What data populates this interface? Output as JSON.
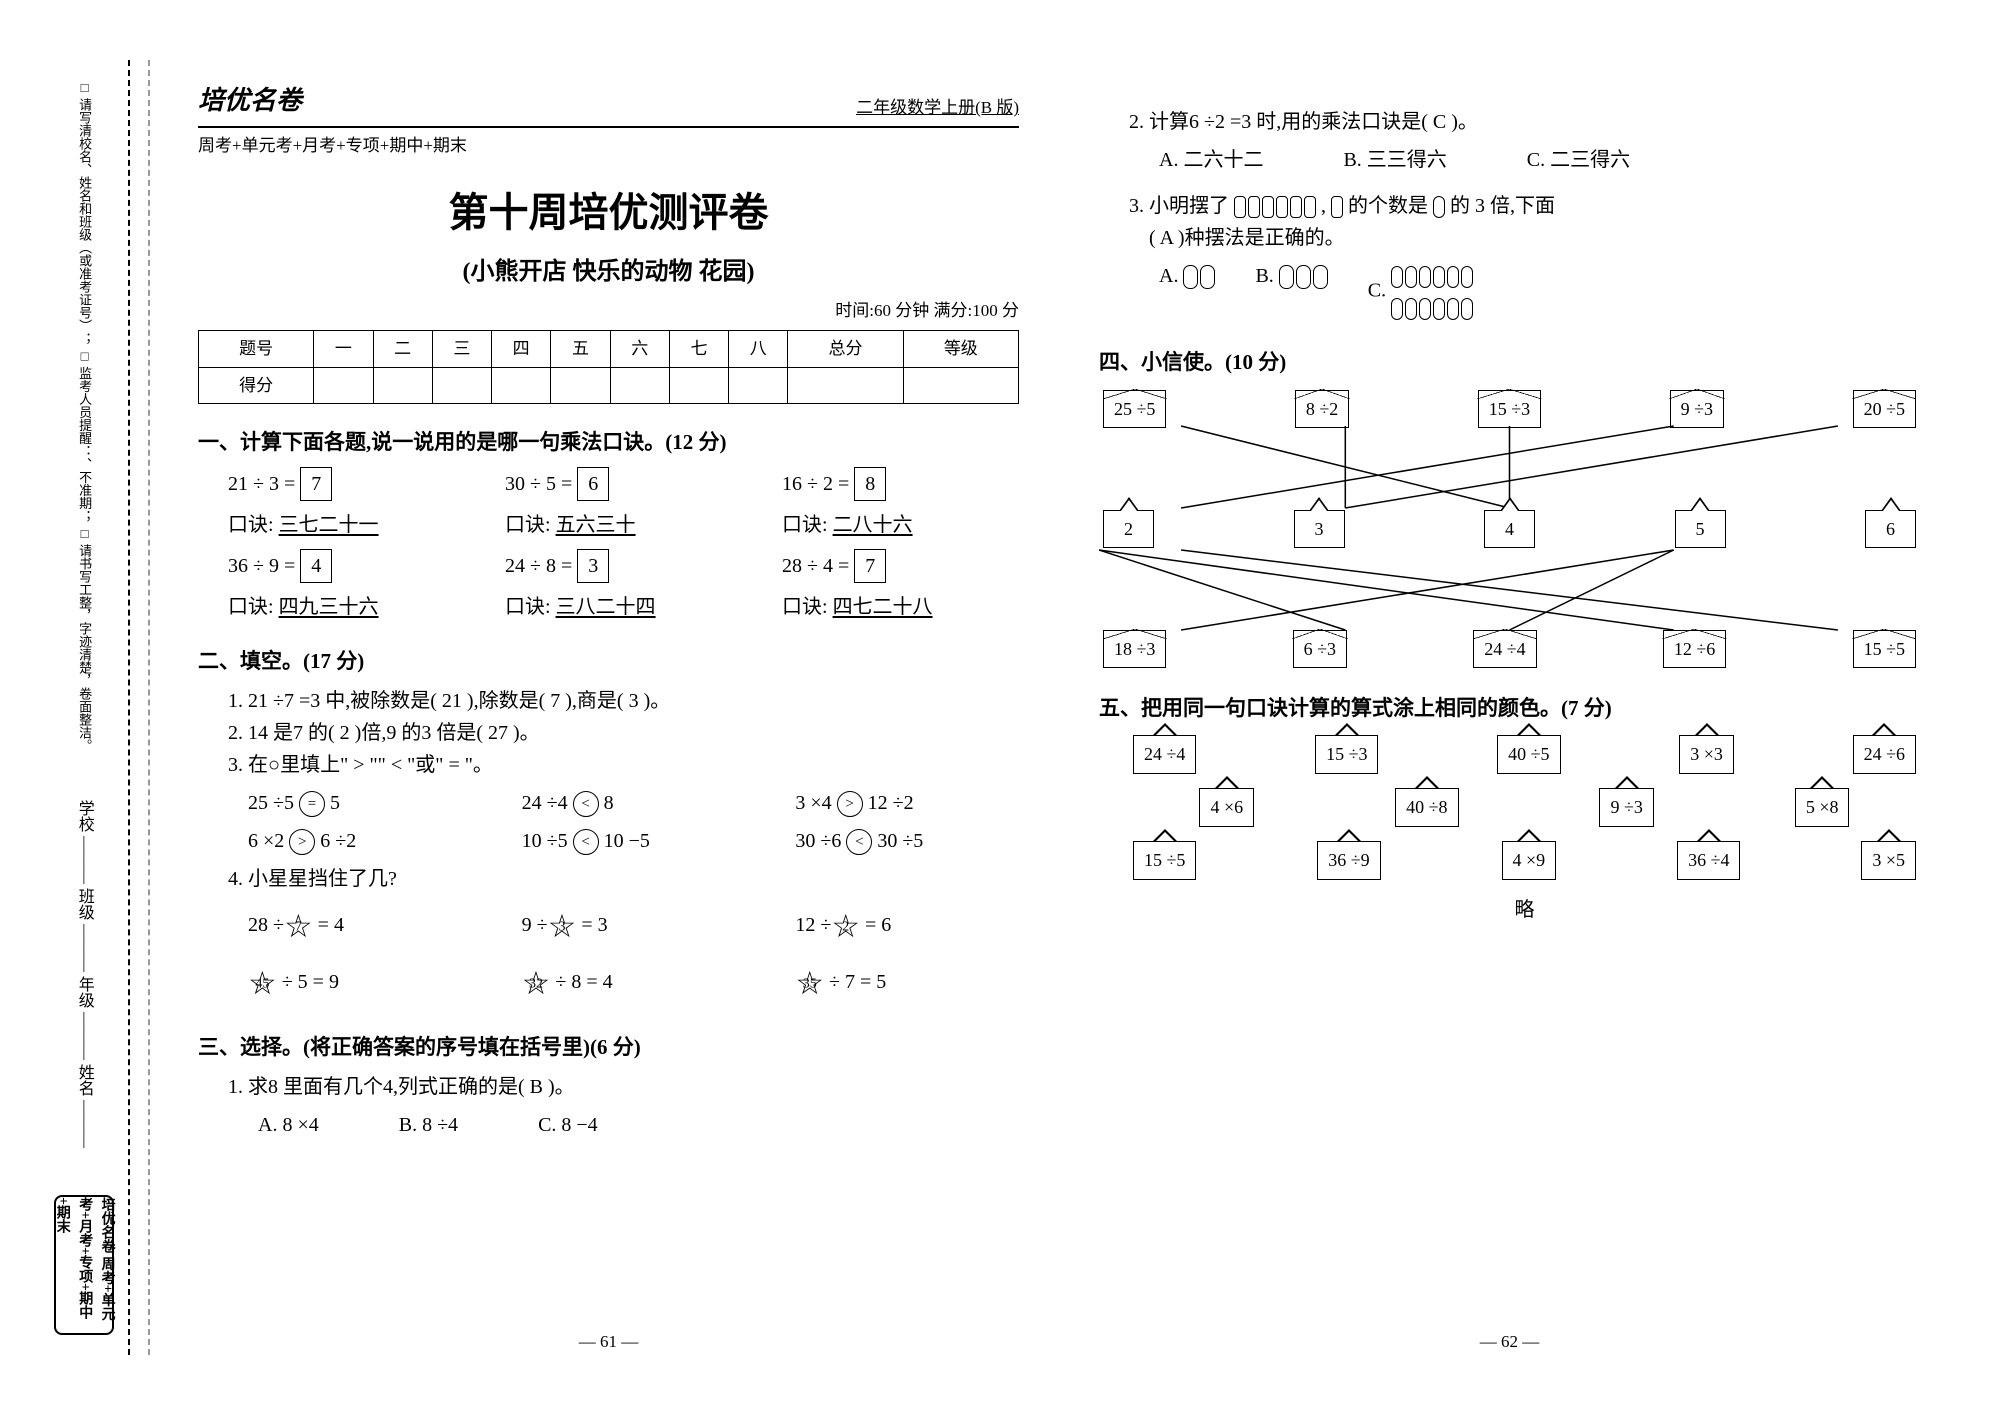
{
  "spine": {
    "instructions": "□ 请写清校名、姓名和班级（或准考证号）；\n□ 监考人员提醒：、不准期；\n□ 请书写工整，字迹清楚，卷面整洁。",
    "labels": "学校 ——— 班级 ——— 年级 ——— 姓名 ———",
    "logo": "培优名卷 周考+单元考+月考+专项+期中+期末"
  },
  "header": {
    "brand": "培优名卷",
    "grade": "二年级数学上册(B 版)",
    "line2": "周考+单元考+月考+专项+期中+期末"
  },
  "title": "第十周培优测评卷",
  "subtitle": "(小熊开店 快乐的动物 花园)",
  "timebar": "时间:60 分钟 满分:100 分",
  "score": {
    "cols": [
      "题号",
      "一",
      "二",
      "三",
      "四",
      "五",
      "六",
      "七",
      "八",
      "总分",
      "等级"
    ],
    "row2": "得分"
  },
  "s1": {
    "h": "一、计算下面各题,说一说用的是哪一句乘法口诀。(12 分)",
    "items": [
      {
        "eq": "21 ÷ 3 =",
        "ans": "7",
        "k": "口诀:",
        "kv": "三七二十一"
      },
      {
        "eq": "30 ÷ 5 =",
        "ans": "6",
        "k": "口诀:",
        "kv": "五六三十"
      },
      {
        "eq": "16 ÷ 2 =",
        "ans": "8",
        "k": "口诀:",
        "kv": "二八十六"
      },
      {
        "eq": "36 ÷ 9 =",
        "ans": "4",
        "k": "口诀:",
        "kv": "四九三十六"
      },
      {
        "eq": "24 ÷ 8 =",
        "ans": "3",
        "k": "口诀:",
        "kv": "三八二十四"
      },
      {
        "eq": "28 ÷ 4 =",
        "ans": "7",
        "k": "口诀:",
        "kv": "四七二十八"
      }
    ]
  },
  "s2": {
    "h": "二、填空。(17 分)",
    "q1a": "1. 21 ÷7 =3 中,被除数是(",
    "q1b": "21",
    "q1c": "),除数是(",
    "q1d": "7",
    "q1e": "),商是(",
    "q1f": "3",
    "q1g": ")。",
    "q2a": "2. 14 是7 的(",
    "q2b": "2",
    "q2c": ")倍,9 的3 倍是(",
    "q2d": "27",
    "q2e": ")。",
    "q3": "3. 在○里填上\" > \"\" < \"或\" = \"。",
    "cmp": [
      {
        "l": "25 ÷5",
        "s": "=",
        "r": "5"
      },
      {
        "l": "24 ÷4",
        "s": "<",
        "r": "8"
      },
      {
        "l": "3 ×4",
        "s": ">",
        "r": "12 ÷2"
      },
      {
        "l": "6 ×2",
        "s": ">",
        "r": "6 ÷2"
      },
      {
        "l": "10 ÷5",
        "s": "<",
        "r": "10 −5"
      },
      {
        "l": "30 ÷6",
        "s": "<",
        "r": "30 ÷5"
      }
    ],
    "q4": "4. 小星星挡住了几?",
    "stars": [
      {
        "pre": "28 ÷",
        "v": "7",
        "post": "= 4"
      },
      {
        "pre": "9 ÷",
        "v": "3",
        "post": "= 3"
      },
      {
        "pre": "12 ÷",
        "v": "2",
        "post": "= 6"
      },
      {
        "pre": "",
        "v": "45",
        "post": "÷ 5 = 9"
      },
      {
        "pre": "",
        "v": "32",
        "post": "÷ 8 = 4"
      },
      {
        "pre": "",
        "v": "35",
        "post": "÷ 7 = 5"
      }
    ]
  },
  "s3": {
    "h": "三、选择。(将正确答案的序号填在括号里)(6 分)",
    "q1": "1. 求8 里面有几个4,列式正确的是(",
    "q1ans": "B",
    "q1end": ")。",
    "q1opts": [
      "A. 8 ×4",
      "B. 8 ÷4",
      "C. 8 −4"
    ],
    "q2": "2. 计算6 ÷2 =3 时,用的乘法口诀是(",
    "q2ans": "C",
    "q2end": ")。",
    "q2opts": [
      "A. 二六十二",
      "B. 三三得六",
      "C. 二三得六"
    ],
    "q3a": "3. 小明摆了",
    "q3b": ",",
    "q3c": "的个数是",
    "q3d": "的 3 倍,下面",
    "q3e": "(",
    "q3ans": "A",
    "q3f": ")种摆法是正确的。",
    "q3opts": [
      "A.",
      "B.",
      "C."
    ]
  },
  "s4": {
    "h": "四、小信使。(10 分)",
    "top": [
      "25 ÷5",
      "8 ÷2",
      "15 ÷3",
      "9 ÷3",
      "20 ÷5"
    ],
    "mid": [
      "2",
      "3",
      "4",
      "5",
      "6"
    ],
    "bot": [
      "18 ÷3",
      "6 ÷3",
      "24 ÷4",
      "12 ÷6",
      "15 ÷5"
    ],
    "edges_top": [
      [
        0,
        4
      ],
      [
        1,
        3
      ],
      [
        2,
        4
      ],
      [
        3,
        2
      ],
      [
        4,
        3
      ]
    ],
    "edges_bot": [
      [
        0,
        5
      ],
      [
        1,
        1
      ],
      [
        2,
        5
      ],
      [
        3,
        1
      ],
      [
        4,
        2
      ]
    ]
  },
  "s5": {
    "h": "五、把用同一句口诀计算的算式涂上相同的颜色。(7 分)",
    "r1": [
      "24 ÷4",
      "15 ÷3",
      "40 ÷5",
      "3 ×3",
      "24 ÷6"
    ],
    "r2": [
      "4 ×6",
      "40 ÷8",
      "9 ÷3",
      "5 ×8"
    ],
    "r3": [
      "15 ÷5",
      "36 ÷9",
      "4 ×9",
      "36 ÷4",
      "3 ×5"
    ],
    "note": "略"
  },
  "pages": {
    "l": "— 61 —",
    "r": "— 62 —"
  }
}
